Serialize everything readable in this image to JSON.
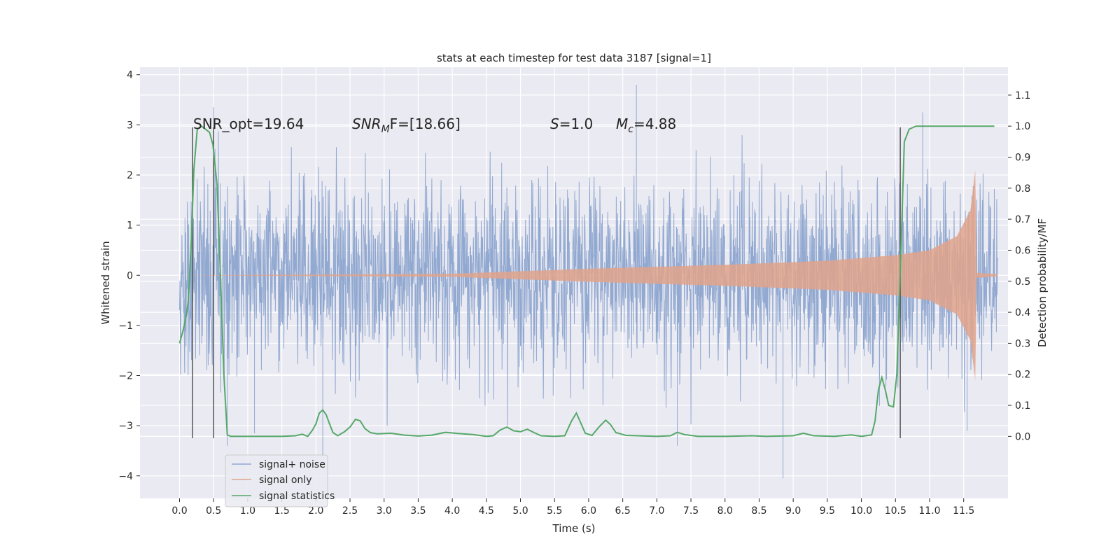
{
  "chart_data": {
    "type": "line",
    "title": "stats at each timestep for test data 3187 [signal=1]",
    "xlabel": "Time (s)",
    "ylabel_left": "Whitened strain",
    "ylabel_right": "Detection probability/MF",
    "xlim": [
      -0.58,
      12.15
    ],
    "ylim_left": [
      -4.45,
      4.15
    ],
    "ylim_right": [
      -0.2,
      1.19
    ],
    "x_ticks": [
      "0.0",
      "0.5",
      "1.0",
      "1.5",
      "2.0",
      "2.5",
      "3.0",
      "3.5",
      "4.0",
      "4.5",
      "5.0",
      "5.5",
      "6.0",
      "6.5",
      "7.0",
      "7.5",
      "8.0",
      "8.5",
      "9.0",
      "9.5",
      "10.0",
      "10.5",
      "11.0",
      "11.5"
    ],
    "y_ticks_left": [
      "−4",
      "−3",
      "−2",
      "−1",
      "0",
      "1",
      "2",
      "3",
      "4"
    ],
    "y_ticks_right": [
      "0.0",
      "0.1",
      "0.2",
      "0.3",
      "0.4",
      "0.5",
      "0.6",
      "0.7",
      "0.8",
      "0.9",
      "1.0",
      "1.1"
    ],
    "grid": true,
    "legend_position": "lower-left",
    "annotations": [
      {
        "text_main": "SNR_opt=19.64"
      },
      {
        "text_main": "SNR",
        "text_sub": "M",
        "text_rest": "F=[18.66]"
      },
      {
        "text_main": "S",
        "text_rest": "=1.0"
      },
      {
        "text_main": "M",
        "text_sub": "c",
        "text_rest": "=4.88"
      }
    ],
    "vertical_markers_x": [
      0.19,
      0.5,
      10.57
    ],
    "series": [
      {
        "name": "signal+ noise",
        "color": "#91a8d0",
        "description_kind": "noise",
        "x_range": [
          0.0,
          12.0
        ],
        "spread_sigma": 0.95,
        "spike_peaks": [
          {
            "x": 0.5,
            "y": 3.35
          },
          {
            "x": 0.7,
            "y": -3.4
          },
          {
            "x": 1.1,
            "y": -3.15
          },
          {
            "x": 2.1,
            "y": -3.6
          },
          {
            "x": 6.7,
            "y": 3.8
          },
          {
            "x": 7.3,
            "y": -3.4
          },
          {
            "x": 8.85,
            "y": -4.05
          },
          {
            "x": 10.9,
            "y": 3.25
          },
          {
            "x": 11.55,
            "y": -3.1
          }
        ]
      },
      {
        "name": "signal only",
        "color": "#e0a38b",
        "description_kind": "chirp",
        "envelope": [
          {
            "x": 0.0,
            "y": 0.0
          },
          {
            "x": 4.0,
            "y": 0.03
          },
          {
            "x": 6.0,
            "y": 0.13
          },
          {
            "x": 8.0,
            "y": 0.21
          },
          {
            "x": 9.5,
            "y": 0.29
          },
          {
            "x": 10.5,
            "y": 0.4
          },
          {
            "x": 11.0,
            "y": 0.5
          },
          {
            "x": 11.4,
            "y": 0.78
          },
          {
            "x": 11.6,
            "y": 1.3
          },
          {
            "x": 11.67,
            "y": 2.1
          },
          {
            "x": 11.69,
            "y": 0.05
          },
          {
            "x": 12.0,
            "y": 0.02
          }
        ]
      },
      {
        "name": "signal statistics",
        "color": "#55a868",
        "axis": "right",
        "points": [
          [
            0.0,
            0.3
          ],
          [
            0.05,
            0.34
          ],
          [
            0.1,
            0.39
          ],
          [
            0.13,
            0.44
          ],
          [
            0.17,
            0.62
          ],
          [
            0.21,
            0.86
          ],
          [
            0.26,
            0.99
          ],
          [
            0.32,
            1.0
          ],
          [
            0.38,
            0.99
          ],
          [
            0.44,
            0.98
          ],
          [
            0.49,
            0.94
          ],
          [
            0.55,
            0.81
          ],
          [
            0.6,
            0.52
          ],
          [
            0.65,
            0.2
          ],
          [
            0.7,
            0.005
          ],
          [
            0.75,
            0.0
          ],
          [
            1.3,
            0.0
          ],
          [
            1.5,
            0.0
          ],
          [
            1.7,
            0.002
          ],
          [
            1.8,
            0.007
          ],
          [
            1.88,
            0.0
          ],
          [
            1.95,
            0.02
          ],
          [
            2.0,
            0.04
          ],
          [
            2.05,
            0.075
          ],
          [
            2.1,
            0.085
          ],
          [
            2.15,
            0.07
          ],
          [
            2.2,
            0.04
          ],
          [
            2.25,
            0.012
          ],
          [
            2.32,
            0.002
          ],
          [
            2.42,
            0.015
          ],
          [
            2.5,
            0.03
          ],
          [
            2.58,
            0.055
          ],
          [
            2.65,
            0.05
          ],
          [
            2.72,
            0.025
          ],
          [
            2.8,
            0.012
          ],
          [
            2.9,
            0.008
          ],
          [
            3.1,
            0.01
          ],
          [
            3.3,
            0.004
          ],
          [
            3.5,
            0.001
          ],
          [
            3.7,
            0.004
          ],
          [
            3.9,
            0.013
          ],
          [
            4.1,
            0.009
          ],
          [
            4.3,
            0.006
          ],
          [
            4.5,
            0.0
          ],
          [
            4.6,
            0.002
          ],
          [
            4.7,
            0.02
          ],
          [
            4.8,
            0.03
          ],
          [
            4.9,
            0.018
          ],
          [
            5.0,
            0.015
          ],
          [
            5.1,
            0.023
          ],
          [
            5.2,
            0.012
          ],
          [
            5.3,
            0.002
          ],
          [
            5.5,
            0.0
          ],
          [
            5.65,
            0.002
          ],
          [
            5.75,
            0.05
          ],
          [
            5.82,
            0.075
          ],
          [
            5.88,
            0.045
          ],
          [
            5.95,
            0.01
          ],
          [
            6.05,
            0.003
          ],
          [
            6.15,
            0.03
          ],
          [
            6.25,
            0.052
          ],
          [
            6.32,
            0.038
          ],
          [
            6.4,
            0.012
          ],
          [
            6.55,
            0.003
          ],
          [
            7.0,
            0.0
          ],
          [
            7.2,
            0.002
          ],
          [
            7.3,
            0.013
          ],
          [
            7.4,
            0.006
          ],
          [
            7.6,
            0.0
          ],
          [
            8.0,
            0.0
          ],
          [
            8.4,
            0.002
          ],
          [
            8.6,
            0.0
          ],
          [
            9.0,
            0.002
          ],
          [
            9.15,
            0.01
          ],
          [
            9.3,
            0.002
          ],
          [
            9.6,
            0.0
          ],
          [
            9.85,
            0.005
          ],
          [
            10.0,
            0.0
          ],
          [
            10.15,
            0.005
          ],
          [
            10.2,
            0.05
          ],
          [
            10.25,
            0.15
          ],
          [
            10.3,
            0.19
          ],
          [
            10.35,
            0.15
          ],
          [
            10.4,
            0.1
          ],
          [
            10.47,
            0.095
          ],
          [
            10.52,
            0.2
          ],
          [
            10.58,
            0.6
          ],
          [
            10.63,
            0.95
          ],
          [
            10.7,
            0.99
          ],
          [
            10.8,
            1.0
          ],
          [
            11.0,
            1.0
          ],
          [
            11.5,
            1.0
          ],
          [
            11.95,
            1.0
          ]
        ]
      }
    ]
  }
}
